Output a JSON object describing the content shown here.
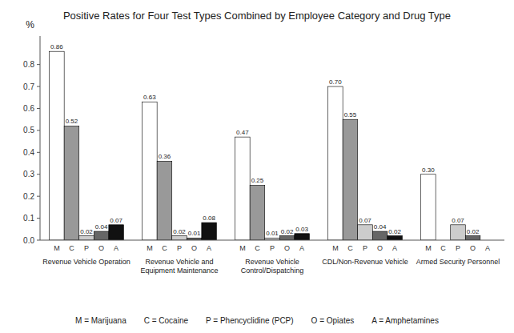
{
  "chart_data": {
    "type": "bar",
    "title": "Positive Rates for Four Test Types Combined by Employee Category and Drug Type",
    "y_label": "%",
    "categories": [
      "Revenue Vehicle Operation",
      "Revenue Vehicle and\nEquipment Maintenance",
      "Revenue Vehicle\nControl/Dispatching",
      "CDL/Non-Revenue Vehicle",
      "Armed Security Personnel"
    ],
    "series": [
      {
        "name": "M = Marijuana",
        "label": "M",
        "color": "#ffffff",
        "values": [
          0.86,
          0.63,
          0.47,
          0.7,
          0.3
        ],
        "value_labels": [
          "0.86",
          "0.63",
          "0.47",
          "0.70",
          "0.30"
        ]
      },
      {
        "name": "C = Cocaine",
        "label": "C",
        "color": "#999999",
        "values": [
          0.52,
          0.36,
          0.25,
          0.55,
          0.0
        ],
        "value_labels": [
          "0.52",
          "0.36",
          "0.25",
          "0.55",
          null
        ]
      },
      {
        "name": "P = Phencyclidine (PCP)",
        "label": "P",
        "color": "#cccccc",
        "values": [
          0.02,
          0.02,
          0.01,
          0.07,
          0.07
        ],
        "value_labels": [
          "0.02",
          "0.02",
          "0.01",
          "0.07",
          "0.07"
        ]
      },
      {
        "name": "O = Opiates",
        "label": "O",
        "color": "#666666",
        "values": [
          0.04,
          0.01,
          0.02,
          0.04,
          0.02
        ],
        "value_labels": [
          "0.04",
          "0.01",
          "0.02",
          "0.04",
          "0.02"
        ]
      },
      {
        "name": "A = Amphetamines",
        "label": "A",
        "color": "#111111",
        "values": [
          0.07,
          0.08,
          0.03,
          0.02,
          0.0
        ],
        "value_labels": [
          "0.07",
          "0.08",
          "0.03",
          "0.02",
          null
        ]
      }
    ],
    "ylim": [
      0,
      0.93
    ],
    "yticks": [
      {
        "value": 0.0,
        "label": "0.0"
      },
      0.1,
      0.2,
      0.3,
      0.4,
      0.5,
      0.6,
      0.7,
      0.8
    ],
    "data_labels": true,
    "grid": false,
    "legend": "bottom"
  }
}
